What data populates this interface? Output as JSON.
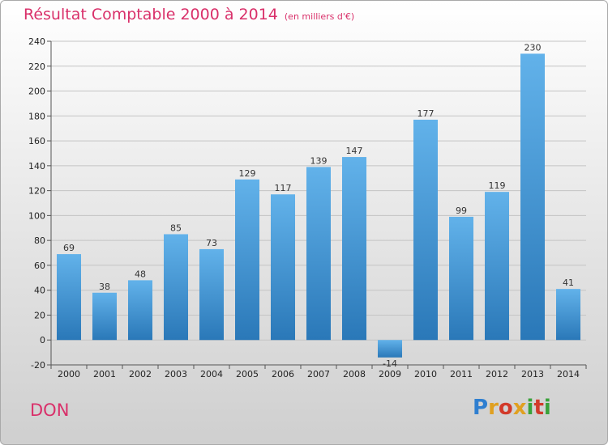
{
  "chart_data": {
    "type": "bar",
    "title": "Résultat Comptable 2000 à 2014",
    "subtitle": "(en milliers d'€)",
    "categories": [
      "2000",
      "2001",
      "2002",
      "2003",
      "2004",
      "2005",
      "2006",
      "2007",
      "2008",
      "2009",
      "2010",
      "2011",
      "2012",
      "2013",
      "2014"
    ],
    "values": [
      69,
      38,
      48,
      85,
      73,
      129,
      117,
      139,
      147,
      -14,
      177,
      99,
      119,
      230,
      41
    ],
    "ylim": [
      -20,
      240
    ],
    "yticks": [
      -20,
      0,
      20,
      40,
      60,
      80,
      100,
      120,
      140,
      160,
      180,
      200,
      220,
      240
    ],
    "xlabel": "",
    "ylabel": "",
    "grid": true,
    "colors": {
      "bar_top": "#62b2ea",
      "bar_bottom": "#2a78b8",
      "title": "#d9306a"
    }
  },
  "commune": "DON",
  "logo": {
    "letters": [
      "P",
      "r",
      "o",
      "x",
      "i",
      "t",
      "i"
    ],
    "colors": [
      "#2f7fd0",
      "#e0a020",
      "#d23a2a",
      "#e0a020",
      "#3aa23a",
      "#d23a2a",
      "#3aa23a"
    ]
  }
}
